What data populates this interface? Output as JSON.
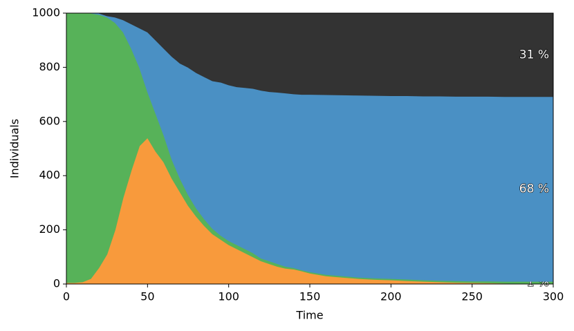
{
  "chart_data": {
    "type": "stacked_area",
    "xlabel": "Time",
    "ylabel": "Individuals",
    "x": [
      0,
      5,
      10,
      15,
      20,
      25,
      30,
      35,
      40,
      45,
      50,
      55,
      60,
      65,
      70,
      75,
      80,
      85,
      90,
      95,
      100,
      105,
      110,
      115,
      120,
      125,
      130,
      135,
      140,
      145,
      150,
      160,
      170,
      180,
      190,
      200,
      210,
      220,
      230,
      240,
      250,
      260,
      270,
      280,
      290,
      300
    ],
    "series": [
      {
        "color": "#f89a3c",
        "values": [
          5,
          5,
          8,
          20,
          60,
          110,
          200,
          320,
          420,
          510,
          540,
          490,
          450,
          390,
          340,
          290,
          250,
          215,
          185,
          165,
          145,
          130,
          115,
          100,
          85,
          75,
          65,
          58,
          55,
          48,
          40,
          30,
          25,
          20,
          17,
          15,
          12,
          10,
          8,
          6,
          5,
          4,
          3,
          2,
          1,
          1
        ]
      },
      {
        "color": "#57b259",
        "end_label": "1 %",
        "values": [
          995,
          995,
          992,
          980,
          935,
          875,
          765,
          610,
          450,
          290,
          170,
          140,
          100,
          70,
          50,
          40,
          30,
          25,
          20,
          15,
          15,
          15,
          15,
          15,
          10,
          10,
          10,
          7,
          5,
          4,
          5,
          5,
          5,
          5,
          5,
          5,
          6,
          5,
          5,
          6,
          6,
          7,
          7,
          8,
          9,
          9
        ]
      },
      {
        "color": "#4a90c4",
        "end_label": "68 %",
        "values": [
          0,
          0,
          0,
          0,
          5,
          5,
          20,
          45,
          90,
          145,
          220,
          270,
          320,
          380,
          425,
          470,
          500,
          525,
          545,
          565,
          575,
          583,
          595,
          607,
          620,
          625,
          633,
          640,
          642,
          648,
          655,
          664,
          668,
          672,
          674,
          675,
          677,
          679,
          681,
          681,
          682,
          682,
          682,
          682,
          682,
          682
        ]
      },
      {
        "color": "#333333",
        "end_label": "31 %",
        "values": [
          0,
          0,
          0,
          0,
          0,
          10,
          15,
          25,
          40,
          55,
          70,
          100,
          130,
          160,
          185,
          200,
          220,
          235,
          250,
          255,
          265,
          272,
          275,
          278,
          285,
          290,
          292,
          295,
          298,
          300,
          300,
          301,
          302,
          303,
          304,
          305,
          305,
          306,
          306,
          307,
          307,
          307,
          308,
          308,
          308,
          308
        ]
      }
    ],
    "xlim": [
      0,
      300
    ],
    "xticks": [
      0,
      50,
      100,
      150,
      200,
      250,
      300
    ],
    "ylim": [
      0,
      1000
    ],
    "yticks": [
      0,
      200,
      400,
      600,
      800,
      1000
    ]
  }
}
